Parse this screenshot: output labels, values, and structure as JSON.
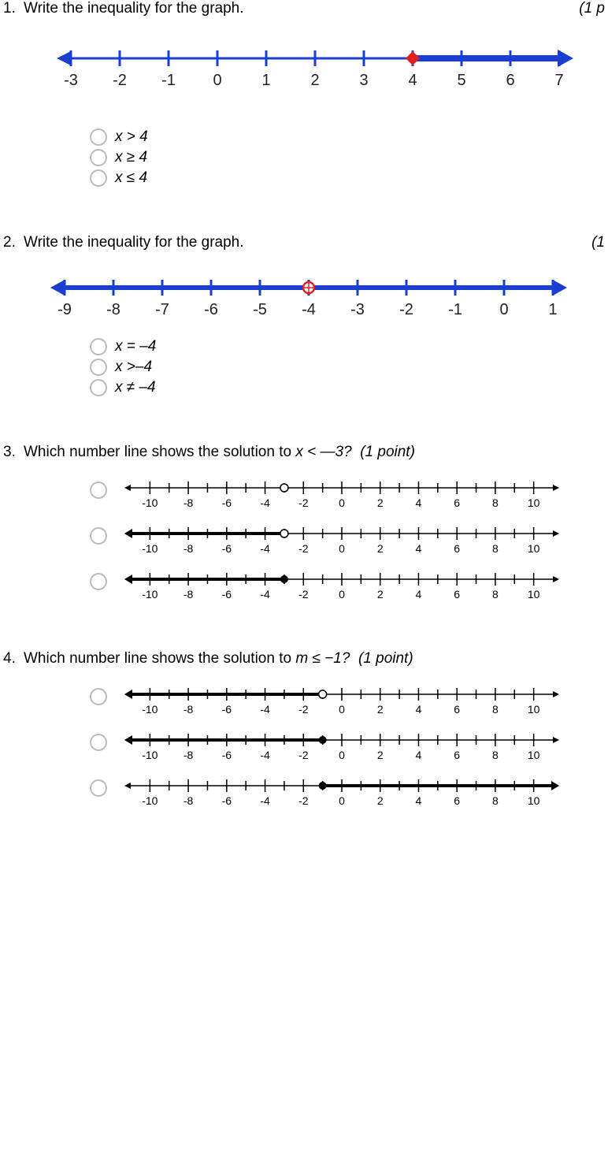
{
  "q1": {
    "number": "1.",
    "prompt": "Write the inequality for the graph.",
    "points": "(1 p",
    "choices": [
      "x > 4",
      "x ≥ 4",
      "x ≤ 4"
    ],
    "numberline": {
      "min": -3,
      "max": 7,
      "step": 1,
      "labels": [
        "-3",
        "-2",
        "-1",
        "0",
        "1",
        "2",
        "3",
        "4",
        "5",
        "6",
        "7"
      ],
      "axis_color": "#1a3fd1",
      "tick_color": "#1a3fd1",
      "label_color": "#222",
      "label_fontsize": 20,
      "point_value": 4,
      "point_type": "closed",
      "point_color": "#d22",
      "ray_to": "right",
      "ray_color": "#1a3fd1",
      "ray_width": 8,
      "left_arrow_blue": true
    }
  },
  "q2": {
    "number": "2.",
    "prompt": "Write the inequality for the graph.",
    "points": "(1 ",
    "choices": [
      "x = –4",
      "x >–4",
      "x ≠ –4"
    ],
    "numberline": {
      "min": -9,
      "max": 1,
      "step": 1,
      "labels": [
        "-9",
        "-8",
        "-7",
        "-6",
        "-5",
        "-4",
        "-3",
        "-2",
        "-1",
        "0",
        "1"
      ],
      "axis_color": "#1a3fd1",
      "tick_color": "#1a3fd1",
      "label_color": "#222",
      "label_fontsize": 20,
      "point_value": -4,
      "point_type": "open",
      "point_color": "#d22",
      "ray_to": "both",
      "ray_color": "#1a3fd1",
      "ray_width": 6
    }
  },
  "q3": {
    "number": "3.",
    "prompt_pre": "Which number line shows the solution to ",
    "prompt_var": "x < —3?",
    "points": "(1 point)",
    "nl_common": {
      "min": -11,
      "max": 11,
      "major_step": 2,
      "labels": [
        "-10",
        "-8",
        "-6",
        "-4",
        "-2",
        "0",
        "2",
        "4",
        "6",
        "8",
        "10"
      ],
      "axis_color": "#000",
      "label_fontsize": 14
    },
    "options": [
      {
        "point_value": -3,
        "point_type": "open",
        "ray_to": "none"
      },
      {
        "point_value": -3,
        "point_type": "open",
        "ray_to": "left"
      },
      {
        "point_value": -3,
        "point_type": "closed",
        "ray_to": "left"
      }
    ]
  },
  "q4": {
    "number": "4.",
    "prompt_pre": "Which number line shows the solution to ",
    "prompt_var": "m ≤ −1?",
    "points": "(1 point)",
    "nl_common": {
      "min": -11,
      "max": 11,
      "major_step": 2,
      "labels": [
        "-10",
        "-8",
        "-6",
        "-4",
        "-2",
        "0",
        "2",
        "4",
        "6",
        "8",
        "10"
      ],
      "axis_color": "#000",
      "label_fontsize": 14
    },
    "options": [
      {
        "point_value": -1,
        "point_type": "open",
        "ray_to": "left"
      },
      {
        "point_value": -1,
        "point_type": "closed",
        "ray_to": "left"
      },
      {
        "point_value": -1,
        "point_type": "closed",
        "ray_to": "right"
      }
    ]
  }
}
